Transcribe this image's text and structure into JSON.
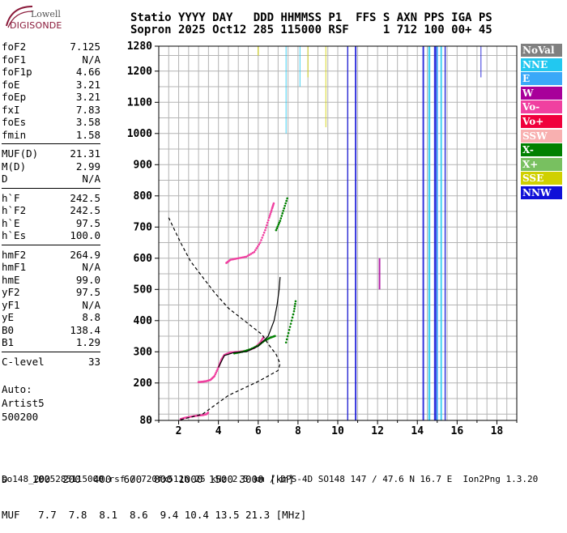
{
  "logo": {
    "line1": "Lowell",
    "line2": "DIGISONDE"
  },
  "header": {
    "line1": "Statio YYYY DAY   DDD HHMMSS P1  FFS S AXN PPS IGA PS",
    "line2": "Sopron 2025 Oct12 285 115000 RSF     1 712 100 00+ 45"
  },
  "params": {
    "group1": [
      {
        "label": "foF2",
        "value": "7.125"
      },
      {
        "label": "foF1",
        "value": "N/A"
      },
      {
        "label": "foF1p",
        "value": "4.66"
      },
      {
        "label": "foE",
        "value": "3.21"
      },
      {
        "label": "foEp",
        "value": "3.21"
      },
      {
        "label": "fxI",
        "value": "7.83"
      },
      {
        "label": "foEs",
        "value": "3.58"
      },
      {
        "label": "fmin",
        "value": "1.58"
      }
    ],
    "group2": [
      {
        "label": "MUF(D)",
        "value": "21.31"
      },
      {
        "label": "M(D)",
        "value": "2.99"
      },
      {
        "label": "D",
        "value": "N/A"
      }
    ],
    "group3": [
      {
        "label": "h`F",
        "value": "242.5"
      },
      {
        "label": "h`F2",
        "value": "242.5"
      },
      {
        "label": "h`E",
        "value": "97.5"
      },
      {
        "label": "h`Es",
        "value": "100.0"
      }
    ],
    "group4": [
      {
        "label": "hmF2",
        "value": "264.9"
      },
      {
        "label": "hmF1",
        "value": "N/A"
      },
      {
        "label": "hmE",
        "value": "99.0"
      },
      {
        "label": "yF2",
        "value": "97.5"
      },
      {
        "label": "yF1",
        "value": "N/A"
      },
      {
        "label": "yE",
        "value": "8.8"
      },
      {
        "label": "B0",
        "value": "138.4"
      },
      {
        "label": "B1",
        "value": "1.29"
      }
    ],
    "group5": [
      {
        "label": "C-level",
        "value": "33"
      }
    ]
  },
  "auto": {
    "line1": "Auto:",
    "line2": "Artist5",
    "line3": "500200"
  },
  "legend": [
    {
      "label": "NoVal",
      "color": "#808080"
    },
    {
      "label": "NNE",
      "color": "#22c8f0"
    },
    {
      "label": "E",
      "color": "#3aa8f8"
    },
    {
      "label": "W",
      "color": "#a8009a"
    },
    {
      "label": "Vo-",
      "color": "#f040a0"
    },
    {
      "label": "Vo+",
      "color": "#f0003c"
    },
    {
      "label": "SSW",
      "color": "#f8b0b0"
    },
    {
      "label": "X-",
      "color": "#008000"
    },
    {
      "label": "X+",
      "color": "#78c060"
    },
    {
      "label": "SSE",
      "color": "#d0d000"
    },
    {
      "label": "NNW",
      "color": "#1010d8"
    }
  ],
  "bottom": {
    "line1": "D    100  200  400  600  800 1000 1500 3000 [km]",
    "line2": "MUF   7.7  7.8  8.1  8.6  9.4 10.4 13.5 21.3 [MHz]"
  },
  "footer": "so148_2025285115000.rsf / 720fx512h 25 kHz 2.5 km / DPS-4D SO148 147 / 47.6 N 16.7 E  Ion2Png 1.3.20",
  "chart_data": {
    "type": "scatter",
    "xlim": [
      1,
      19
    ],
    "ylim": [
      80,
      1280
    ],
    "x_ticks": [
      2,
      4,
      6,
      8,
      10,
      12,
      14,
      16,
      18
    ],
    "y_ticks": [
      80,
      200,
      300,
      400,
      500,
      600,
      700,
      800,
      900,
      1000,
      1100,
      1200,
      1280
    ],
    "grid": true,
    "traces": [
      {
        "color": "#f040a0",
        "points": [
          [
            2.1,
            84
          ],
          [
            2.3,
            88
          ],
          [
            2.6,
            92
          ],
          [
            2.9,
            95
          ],
          [
            3.2,
            97
          ],
          [
            3.4,
            100
          ],
          [
            3.5,
            106
          ]
        ]
      },
      {
        "color": "#f040a0",
        "points": [
          [
            3.0,
            203
          ],
          [
            3.2,
            204
          ],
          [
            3.4,
            206
          ],
          [
            3.6,
            210
          ],
          [
            3.8,
            222
          ],
          [
            4.0,
            250
          ],
          [
            4.15,
            275
          ],
          [
            4.3,
            290
          ],
          [
            4.6,
            298
          ],
          [
            5.0,
            300
          ],
          [
            5.4,
            303
          ],
          [
            5.8,
            312
          ],
          [
            6.1,
            330
          ],
          [
            6.3,
            350
          ]
        ]
      },
      {
        "color": "#f040a0",
        "points": [
          [
            4.4,
            585
          ],
          [
            4.6,
            595
          ],
          [
            5.0,
            600
          ],
          [
            5.4,
            605
          ],
          [
            5.8,
            620
          ],
          [
            6.1,
            650
          ],
          [
            6.35,
            690
          ],
          [
            6.55,
            730
          ],
          [
            6.7,
            760
          ],
          [
            6.8,
            780
          ]
        ]
      },
      {
        "color": "#008000",
        "points": [
          [
            4.8,
            295
          ],
          [
            5.2,
            300
          ],
          [
            5.6,
            308
          ],
          [
            6.0,
            320
          ],
          [
            6.3,
            335
          ],
          [
            6.6,
            345
          ],
          [
            6.9,
            352
          ]
        ]
      },
      {
        "color": "#008000",
        "points": [
          [
            6.9,
            690
          ],
          [
            7.1,
            720
          ],
          [
            7.3,
            760
          ],
          [
            7.5,
            800
          ]
        ]
      },
      {
        "color": "#008000",
        "points": [
          [
            7.4,
            330
          ],
          [
            7.6,
            380
          ],
          [
            7.8,
            430
          ],
          [
            7.9,
            470
          ]
        ]
      }
    ],
    "true_height_profile": [
      [
        2.1,
        82
      ],
      [
        3.2,
        100
      ],
      [
        4.5,
        160
      ],
      [
        6.0,
        205
      ],
      [
        7.0,
        240
      ],
      [
        7.1,
        262
      ],
      [
        6.9,
        292
      ],
      [
        6.5,
        325
      ],
      [
        6.2,
        355
      ],
      [
        5.4,
        395
      ],
      [
        4.5,
        440
      ],
      [
        3.8,
        490
      ],
      [
        3.2,
        540
      ],
      [
        2.6,
        590
      ],
      [
        2.1,
        650
      ],
      [
        1.8,
        690
      ],
      [
        1.5,
        730
      ]
    ],
    "virtual_height_fit": [
      [
        4.0,
        250
      ],
      [
        4.3,
        288
      ],
      [
        4.8,
        298
      ],
      [
        5.4,
        300
      ],
      [
        6.0,
        318
      ],
      [
        6.5,
        350
      ],
      [
        6.8,
        400
      ],
      [
        6.95,
        450
      ],
      [
        7.05,
        500
      ],
      [
        7.1,
        540
      ]
    ]
  }
}
